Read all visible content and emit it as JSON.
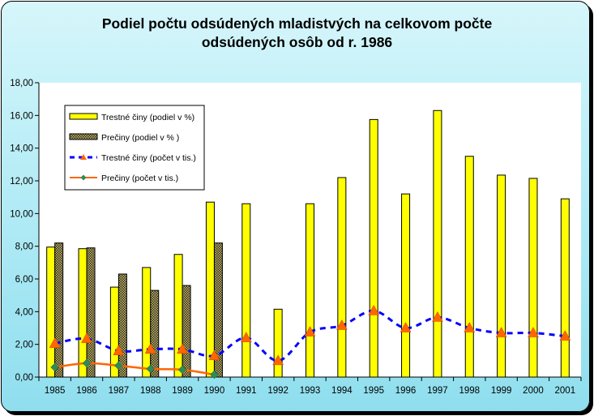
{
  "chart_data": {
    "type": "bar",
    "title_line1": "Podiel počtu odsúdených mladistvých na celkovom počte",
    "title_line2": "odsúdených osôb od r. 1986",
    "categories": [
      "1985",
      "1986",
      "1987",
      "1988",
      "1989",
      "1990",
      "1991",
      "1992",
      "1993",
      "1994",
      "1995",
      "1996",
      "1997",
      "1998",
      "1999",
      "2000",
      "2001"
    ],
    "y_ticks": [
      "0,00",
      "2,00",
      "4,00",
      "6,00",
      "8,00",
      "10,00",
      "12,00",
      "14,00",
      "16,00",
      "18,00"
    ],
    "ylim": [
      0,
      18
    ],
    "grid": false,
    "legend_position": "top-left",
    "series": [
      {
        "name": "Trestné činy (podiel v %)",
        "kind": "bar",
        "color": "#ffff00",
        "values": [
          7.95,
          7.85,
          5.5,
          6.7,
          7.5,
          10.7,
          10.6,
          4.15,
          10.6,
          12.2,
          15.75,
          11.2,
          16.3,
          13.5,
          12.35,
          12.15,
          10.9
        ]
      },
      {
        "name": "Prečiny (podiel v % )",
        "kind": "bar",
        "color": "#5a5a32",
        "values": [
          8.2,
          7.9,
          6.3,
          5.3,
          5.6,
          8.2,
          null,
          null,
          null,
          null,
          null,
          null,
          null,
          null,
          null,
          null,
          null
        ]
      },
      {
        "name": "Trestné činy (počet v tis.)",
        "kind": "line-dashed",
        "color": "#0000ff",
        "marker_color": "#ff6600",
        "values": [
          2.05,
          2.35,
          1.6,
          1.7,
          1.7,
          1.3,
          2.4,
          1.0,
          2.75,
          3.15,
          4.05,
          3.0,
          3.65,
          3.0,
          2.7,
          2.7,
          2.5
        ]
      },
      {
        "name": "Prečiny (počet v tis.)",
        "kind": "line",
        "color": "#ff6600",
        "marker_color": "#2e8b57",
        "values": [
          0.6,
          0.85,
          0.7,
          0.5,
          0.45,
          0.15,
          null,
          null,
          null,
          null,
          null,
          null,
          null,
          null,
          null,
          null,
          null
        ]
      }
    ]
  }
}
